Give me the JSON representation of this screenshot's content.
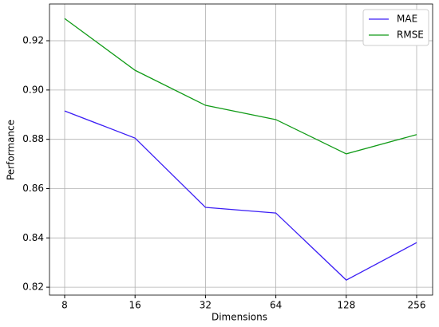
{
  "chart_data": {
    "type": "line",
    "xlabel": "Dimensions",
    "ylabel": "Performance",
    "categories": [
      "8",
      "16",
      "32",
      "64",
      "128",
      "256"
    ],
    "series": [
      {
        "name": "MAE",
        "color": "#3c1ff5",
        "values": [
          0.8915,
          0.8805,
          0.8524,
          0.8501,
          0.8229,
          0.8381
        ]
      },
      {
        "name": "RMSE",
        "color": "#119b17",
        "values": [
          0.929,
          0.908,
          0.8938,
          0.888,
          0.8741,
          0.8819
        ]
      }
    ],
    "ylim": [
      0.8168,
      0.9349
    ],
    "yticks": [
      0.82,
      0.84,
      0.86,
      0.88,
      {
        "value": 0.9,
        "label": "0.90"
      },
      0.92
    ],
    "grid": true,
    "legend": "upper right"
  }
}
